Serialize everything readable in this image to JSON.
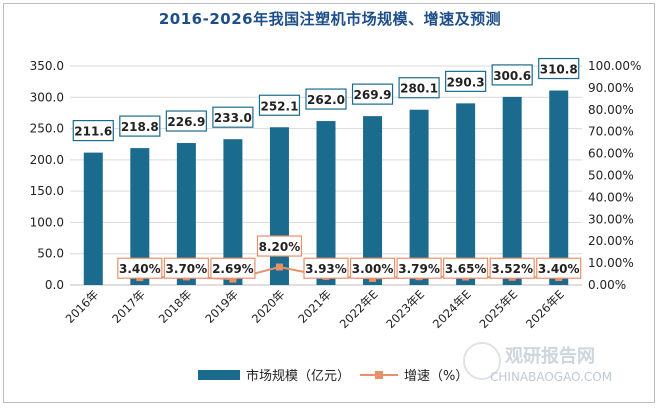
{
  "chart_data": {
    "type": "bar",
    "title": "2016-2026年我国注塑机市场规模、增速及预测",
    "categories": [
      "2016年",
      "2017年",
      "2018年",
      "2019年",
      "2020年",
      "2021年",
      "2022年E",
      "2023年E",
      "2024年E",
      "2025年E",
      "2026年E"
    ],
    "series": [
      {
        "name": "市场规模（亿元）",
        "type": "bar",
        "axis": "left",
        "color": "#1b6b8f",
        "values": [
          211.6,
          218.8,
          226.9,
          233.0,
          252.1,
          262.0,
          269.9,
          280.1,
          290.3,
          300.6,
          310.8
        ],
        "labels": [
          "211.6",
          "218.8",
          "226.9",
          "233.0",
          "252.1",
          "262.0",
          "269.9",
          "280.1",
          "290.3",
          "300.6",
          "310.8"
        ]
      },
      {
        "name": "增速（%）",
        "type": "line",
        "axis": "right",
        "color": "#e8906a",
        "values": [
          null,
          3.4,
          3.7,
          2.69,
          8.2,
          3.93,
          3.0,
          3.79,
          3.65,
          3.52,
          3.4
        ],
        "labels": [
          null,
          "3.40%",
          "3.70%",
          "2.69%",
          "8.20%",
          "3.93%",
          "3.00%",
          "3.79%",
          "3.65%",
          "3.52%",
          "3.40%"
        ]
      }
    ],
    "ylim_left": [
      0,
      350
    ],
    "ylim_right": [
      0,
      100
    ],
    "yticks_left": [
      "0.0",
      "50.0",
      "100.0",
      "150.0",
      "200.0",
      "250.0",
      "300.0",
      "350.0"
    ],
    "yticks_right": [
      "0.00%",
      "10.00%",
      "20.00%",
      "30.00%",
      "40.00%",
      "50.00%",
      "60.00%",
      "70.00%",
      "80.00%",
      "90.00%",
      "100.00%"
    ],
    "grid": true,
    "legend_position": "bottom"
  },
  "watermark": {
    "brand": "观研报告网",
    "url": "CHINABAOGAO.COM"
  }
}
